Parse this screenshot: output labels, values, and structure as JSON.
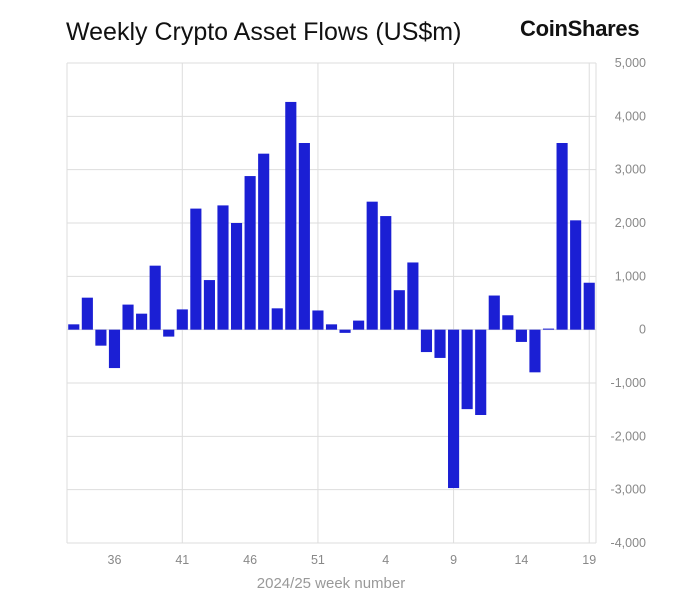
{
  "header": {
    "title": "Weekly Crypto Asset Flows (US$m)",
    "brand": "CoinShares"
  },
  "chart_data": {
    "type": "bar",
    "title": "Weekly Crypto Asset Flows (US$m)",
    "xlabel": "2024/25 week number",
    "ylabel": "",
    "ylim": [
      -4000,
      5000
    ],
    "yticks": [
      5000,
      4000,
      3000,
      2000,
      1000,
      0,
      -1000,
      -2000,
      -3000,
      -4000
    ],
    "ytick_labels": [
      "5,000",
      "4,000",
      "3,000",
      "2,000",
      "1,000",
      "0",
      "-1,000",
      "-2,000",
      "-3,000",
      "-4,000"
    ],
    "xtick_labels": [
      {
        "label": "36",
        "index": 3
      },
      {
        "label": "41",
        "index": 8
      },
      {
        "label": "46",
        "index": 13
      },
      {
        "label": "51",
        "index": 18
      },
      {
        "label": "4",
        "index": 23
      },
      {
        "label": "9",
        "index": 28
      },
      {
        "label": "14",
        "index": 33
      },
      {
        "label": "19",
        "index": 38
      }
    ],
    "categories": [
      "33",
      "34",
      "35",
      "36",
      "37",
      "38",
      "39",
      "40",
      "41",
      "42",
      "43",
      "44",
      "45",
      "46",
      "47",
      "48",
      "49",
      "50",
      "51",
      "52",
      "1",
      "2",
      "3",
      "4",
      "5",
      "6",
      "7",
      "8",
      "9",
      "10",
      "11",
      "12",
      "13",
      "14",
      "15",
      "16",
      "17",
      "18",
      "19"
    ],
    "values": [
      100,
      600,
      -300,
      -720,
      470,
      300,
      1200,
      -130,
      380,
      2270,
      930,
      2330,
      2000,
      2880,
      3300,
      400,
      4270,
      3500,
      360,
      100,
      -60,
      170,
      2400,
      2130,
      740,
      1260,
      -420,
      -530,
      -2970,
      -1490,
      -1600,
      640,
      270,
      -230,
      -800,
      20,
      3500,
      2050,
      880
    ],
    "grid": true,
    "gridlines_x_at": [
      "41",
      "51",
      "9",
      "19"
    ],
    "bar_color": "#1b1fd4",
    "yaxis_position": "right"
  }
}
